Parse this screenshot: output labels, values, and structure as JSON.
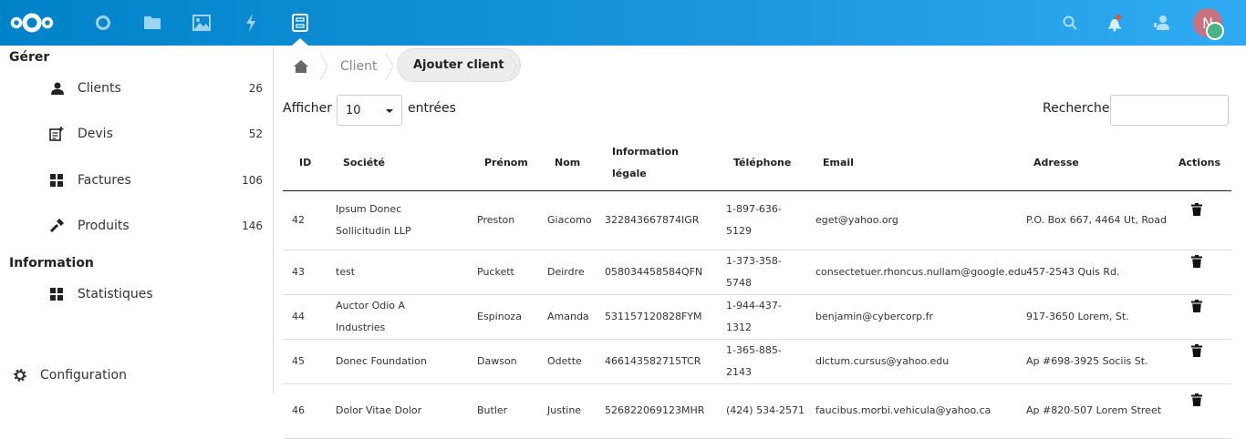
{
  "header": {
    "apps": [
      "logo",
      "dashboard",
      "files",
      "photos",
      "activity",
      "gestion"
    ],
    "active_app": "gestion",
    "avatar_initial": "N",
    "colors": {
      "header_start": "#0082c9",
      "header_end": "#2eabf2",
      "avatar": "#c8727f",
      "status": "#49b382",
      "notification": "#e9532c"
    }
  },
  "sidebar": {
    "sections": [
      {
        "title": "Gérer",
        "items": [
          {
            "label": "Clients",
            "count": "26",
            "icon": "users-icon"
          },
          {
            "label": "Devis",
            "count": "52",
            "icon": "quote-icon"
          },
          {
            "label": "Factures",
            "count": "106",
            "icon": "grid-icon"
          },
          {
            "label": "Produits",
            "count": "146",
            "icon": "wrench-icon"
          }
        ]
      },
      {
        "title": "Information",
        "items": [
          {
            "label": "Statistiques",
            "icon": "grid-icon"
          }
        ]
      }
    ],
    "settings_label": "Configuration"
  },
  "breadcrumb": {
    "items": [
      "Client",
      "Ajouter client"
    ]
  },
  "controls": {
    "show_label": "Afficher",
    "show_value": "10",
    "entries_label": "entrées",
    "search_label": "Recherche",
    "search_value": ""
  },
  "table": {
    "headers": [
      "ID",
      "Société",
      "Prénom",
      "Nom",
      "Information légale",
      "Téléphone",
      "Email",
      "Adresse",
      "Actions"
    ],
    "rows": [
      [
        "42",
        "Ipsum Donec Sollicitudin LLP",
        "Preston",
        "Giacomo",
        "322843667874IGR",
        "1-897-636-5129",
        "eget@yahoo.org",
        "P.O. Box 667, 4464 Ut, Road"
      ],
      [
        "43",
        "test",
        "Puckett",
        "Deirdre",
        "058034458584QFN",
        "1-373-358-5748",
        "consectetuer.rhoncus.nullam@google.edu",
        "457-2543 Quis Rd."
      ],
      [
        "44",
        "Auctor Odio A Industries",
        "Espinoza",
        "Amanda",
        "531157120828FYM",
        "1-944-437-1312",
        "benjamin@cybercorp.fr",
        "917-3650 Lorem, St."
      ],
      [
        "45",
        "Donec Foundation",
        "Dawson",
        "Odette",
        "466143582715TCR",
        "1-365-885-2143",
        "dictum.cursus@yahoo.edu",
        "Ap #698-3925 Sociis St."
      ],
      [
        "46",
        "Dolor Vitae Dolor",
        "Butler",
        "Justine",
        "526822069123MHR",
        "(424) 534-2571",
        "faucibus.morbi.vehicula@yahoo.ca",
        "Ap #820-507 Lorem Street"
      ]
    ]
  }
}
